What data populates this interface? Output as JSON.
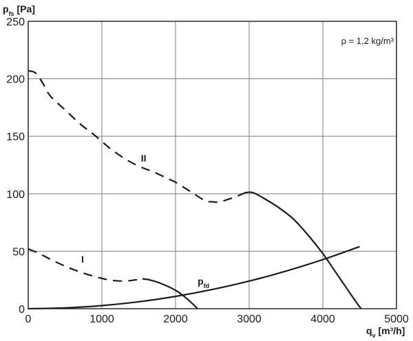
{
  "chart_data": {
    "type": "line",
    "xlabel": {
      "main": "q",
      "sub": "v",
      "unit": " [m³/h]"
    },
    "ylabel": {
      "main": "p",
      "sub": "fs",
      "unit": " [Pa]"
    },
    "xlim": [
      0,
      5000
    ],
    "ylim": [
      0,
      250
    ],
    "x_ticks": [
      "0",
      "1000",
      "2000",
      "3000",
      "4000",
      "5000"
    ],
    "y_ticks": [
      "0",
      "50",
      "100",
      "150",
      "200",
      "250"
    ],
    "grid": true,
    "density_note": "ρ = 1,2 kg/m³",
    "series": [
      {
        "name": "II",
        "style": "mixed",
        "label_at": [
          1530,
          128
        ],
        "segments": [
          {
            "style": "dashed",
            "points": [
              [
                0,
                207
              ],
              [
                100,
                205
              ],
              [
                200,
                196
              ],
              [
                300,
                185
              ],
              [
                500,
                173
              ],
              [
                700,
                161
              ],
              [
                900,
                151
              ],
              [
                1100,
                140
              ],
              [
                1300,
                131
              ],
              [
                1500,
                124
              ],
              [
                1700,
                119
              ],
              [
                1900,
                113
              ],
              [
                2000,
                110
              ],
              [
                2200,
                102
              ],
              [
                2400,
                94
              ],
              [
                2500,
                93
              ],
              [
                2600,
                93
              ],
              [
                2800,
                97
              ],
              [
                2950,
                101
              ]
            ]
          },
          {
            "style": "solid",
            "points": [
              [
                2950,
                101
              ],
              [
                3050,
                101
              ],
              [
                3200,
                96
              ],
              [
                3400,
                88
              ],
              [
                3600,
                78
              ],
              [
                3800,
                64
              ],
              [
                4000,
                48
              ],
              [
                4150,
                34
              ],
              [
                4300,
                20
              ],
              [
                4450,
                6
              ],
              [
                4520,
                0
              ]
            ]
          }
        ]
      },
      {
        "name": "I",
        "style": "mixed",
        "label_at": [
          720,
          40
        ],
        "segments": [
          {
            "style": "dashed",
            "points": [
              [
                0,
                52
              ],
              [
                150,
                48
              ],
              [
                300,
                43
              ],
              [
                500,
                37
              ],
              [
                700,
                32
              ],
              [
                900,
                28
              ],
              [
                1100,
                25
              ],
              [
                1300,
                24
              ],
              [
                1450,
                25
              ],
              [
                1550,
                26
              ]
            ]
          },
          {
            "style": "solid",
            "points": [
              [
                1550,
                26
              ],
              [
                1650,
                25
              ],
              [
                1800,
                22
              ],
              [
                2000,
                16
              ],
              [
                2150,
                9
              ],
              [
                2300,
                0
              ]
            ]
          }
        ]
      },
      {
        "name": "p",
        "name_sub": "fd",
        "style": "solid",
        "label_at": [
          2300,
          21
        ],
        "segments": [
          {
            "style": "solid",
            "points": [
              [
                0,
                0
              ],
              [
                500,
                0.7
              ],
              [
                1000,
                2.7
              ],
              [
                1500,
                6
              ],
              [
                2000,
                10.7
              ],
              [
                2500,
                16.7
              ],
              [
                3000,
                24
              ],
              [
                3500,
                32.7
              ],
              [
                4000,
                42.7
              ],
              [
                4500,
                54
              ]
            ]
          }
        ]
      }
    ]
  }
}
